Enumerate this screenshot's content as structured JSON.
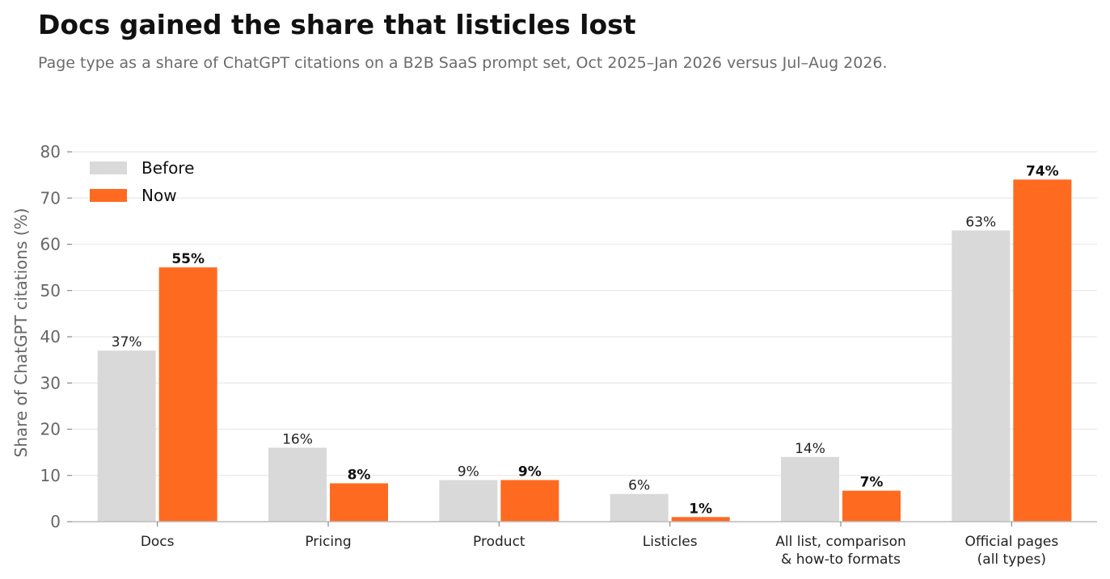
{
  "chart_data": {
    "type": "bar",
    "title": "Docs gained the share that listicles lost",
    "subtitle": "Page type as a share of ChatGPT citations on a B2B SaaS prompt set, Oct 2025–Jan 2026 versus Jul–Aug 2026.",
    "xlabel": "",
    "ylabel": "Share of ChatGPT citations (%)",
    "ylim": [
      0,
      80
    ],
    "yticks": [
      0,
      10,
      20,
      30,
      40,
      50,
      60,
      70,
      80
    ],
    "grid": "horizontal",
    "legend_position": "top-left",
    "categories": [
      [
        "Docs"
      ],
      [
        "Pricing"
      ],
      [
        "Product"
      ],
      [
        "Listicles"
      ],
      [
        "All list, comparison",
        "& how-to formats"
      ],
      [
        "Official pages",
        "(all types)"
      ]
    ],
    "series": [
      {
        "name": "Before",
        "color": "#d9d9d9",
        "values": [
          37,
          16,
          9,
          6,
          14,
          63
        ],
        "labels": [
          "37%",
          "16%",
          "9%",
          "6%",
          "14%",
          "63%"
        ]
      },
      {
        "name": "Now",
        "color": "#ff6a21",
        "values": [
          55,
          8.3,
          9,
          1,
          6.7,
          74
        ],
        "labels": [
          "55%",
          "8%",
          "9%",
          "1%",
          "7%",
          "74%"
        ]
      }
    ]
  }
}
